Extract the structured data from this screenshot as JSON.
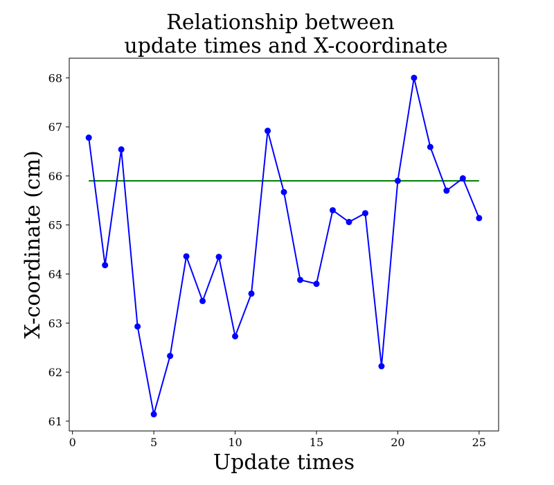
{
  "chart_data": {
    "type": "line",
    "title_lines": [
      "Relationship between",
      "update times and X-coordinate"
    ],
    "xlabel": "Update times",
    "ylabel": "X-coordinate (cm)",
    "xlim": [
      -0.2,
      26.2
    ],
    "ylim": [
      60.8,
      68.4
    ],
    "xticks": [
      0,
      5,
      10,
      15,
      20,
      25
    ],
    "yticks": [
      61,
      62,
      63,
      64,
      65,
      66,
      67,
      68
    ],
    "grid": false,
    "series": [
      {
        "color": "#0000ff",
        "marker": "circle",
        "x": [
          1,
          2,
          3,
          4,
          5,
          6,
          7,
          8,
          9,
          10,
          11,
          12,
          13,
          14,
          15,
          16,
          17,
          18,
          19,
          20,
          21,
          22,
          23,
          24,
          25
        ],
        "y": [
          66.78,
          64.18,
          66.54,
          62.93,
          61.14,
          62.33,
          64.36,
          63.45,
          64.35,
          62.73,
          63.6,
          66.92,
          65.67,
          63.88,
          63.8,
          65.3,
          65.06,
          65.24,
          62.12,
          65.9,
          68.0,
          66.59,
          65.7,
          65.95,
          65.14
        ]
      }
    ],
    "reference_line": {
      "color": "#008000",
      "x": [
        1,
        25
      ],
      "y": [
        65.9,
        65.9
      ]
    }
  }
}
